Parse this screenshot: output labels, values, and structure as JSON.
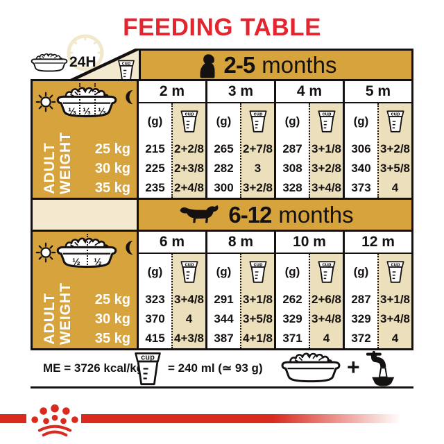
{
  "title": "FEEDING TABLE",
  "colors": {
    "gold": "#d7a33c",
    "cream": "#f2e9cf",
    "beige": "#ecdfbb",
    "ink": "#141110",
    "red": "#e42530",
    "stripe-red": "#d92a1f"
  },
  "top_legend": {
    "h24": "24H"
  },
  "labels": {
    "cup": "cup",
    "grams": "(g)"
  },
  "sidebar": {
    "word1": "ADULT",
    "word2": "WEIGHT",
    "weights": [
      "25 kg",
      "30 kg",
      "35 kg"
    ]
  },
  "sections": [
    {
      "range": "2-5",
      "unit": "months",
      "months": [
        "2 m",
        "3 m",
        "4 m",
        "5 m"
      ],
      "portions": [
        "⅓",
        "⅓",
        "⅓"
      ],
      "rows": [
        {
          "weight": "25 kg",
          "cells": [
            [
              "215",
              "2+2/8"
            ],
            [
              "265",
              "2+7/8"
            ],
            [
              "287",
              "3+1/8"
            ],
            [
              "306",
              "3+2/8"
            ]
          ]
        },
        {
          "weight": "30 kg",
          "cells": [
            [
              "225",
              "2+3/8"
            ],
            [
              "282",
              "3"
            ],
            [
              "308",
              "3+2/8"
            ],
            [
              "340",
              "3+5/8"
            ]
          ]
        },
        {
          "weight": "35 kg",
          "cells": [
            [
              "235",
              "2+4/8"
            ],
            [
              "300",
              "3+2/8"
            ],
            [
              "328",
              "3+4/8"
            ],
            [
              "373",
              "4"
            ]
          ]
        }
      ]
    },
    {
      "range": "6-12",
      "unit": "months",
      "months": [
        "6 m",
        "8 m",
        "10 m",
        "12 m"
      ],
      "portions": [
        "½",
        "½"
      ],
      "rows": [
        {
          "weight": "25 kg",
          "cells": [
            [
              "323",
              "3+4/8"
            ],
            [
              "291",
              "3+1/8"
            ],
            [
              "262",
              "2+6/8"
            ],
            [
              "287",
              "3+1/8"
            ]
          ]
        },
        {
          "weight": "30 kg",
          "cells": [
            [
              "370",
              "4"
            ],
            [
              "344",
              "3+5/8"
            ],
            [
              "329",
              "3+4/8"
            ],
            [
              "329",
              "3+4/8"
            ]
          ]
        },
        {
          "weight": "35 kg",
          "cells": [
            [
              "415",
              "4+3/8"
            ],
            [
              "387",
              "4+1/8"
            ],
            [
              "371",
              "4"
            ],
            [
              "372",
              "4"
            ]
          ]
        }
      ]
    }
  ],
  "footer": {
    "me": "ME = 3726 kcal/kg",
    "cup_equiv": "= 240 ml (≃ 93 g)",
    "plus": "+"
  }
}
